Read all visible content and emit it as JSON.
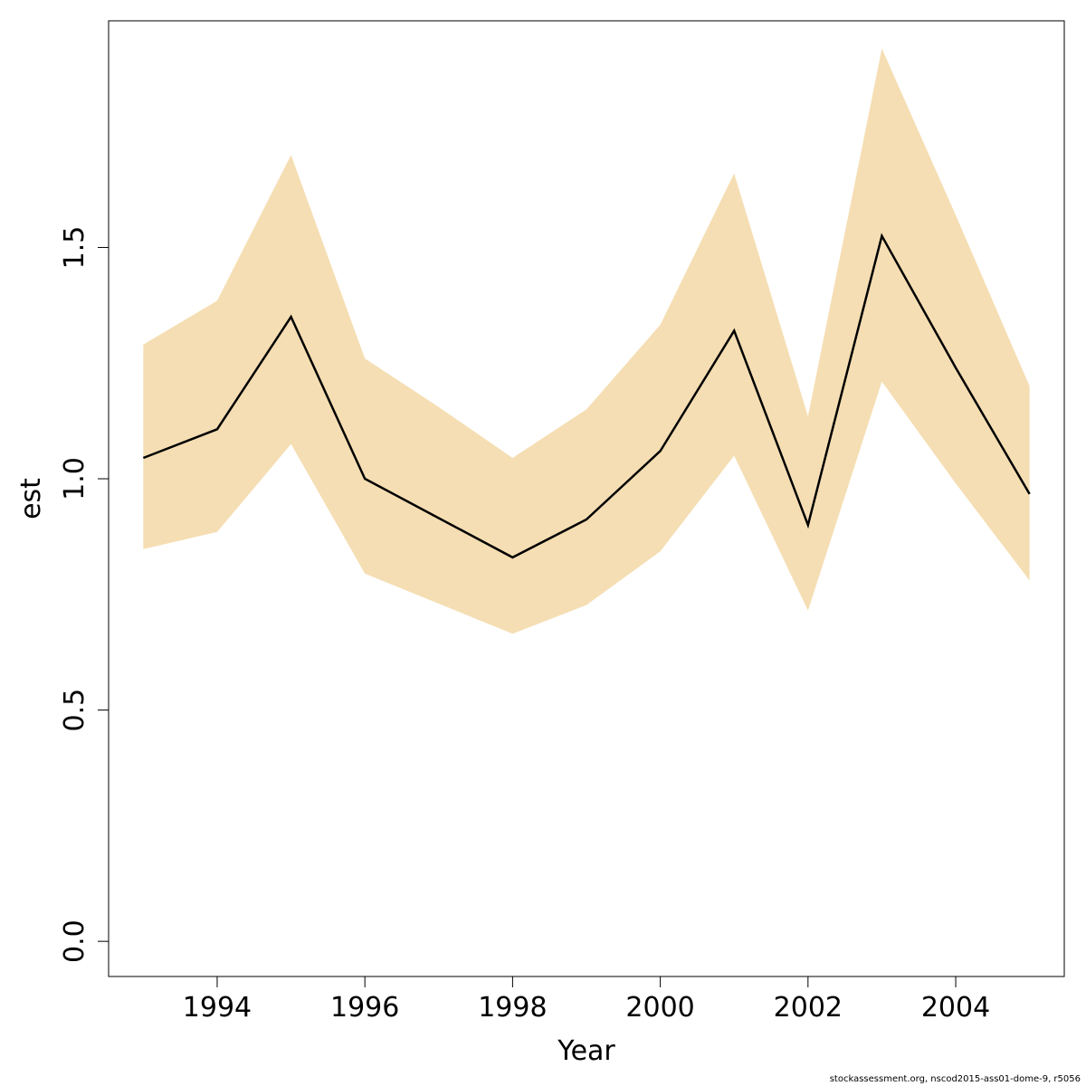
{
  "chart_data": {
    "type": "line",
    "xlabel": "Year",
    "ylabel": "est",
    "x": [
      1993,
      1994,
      1995,
      1996,
      1997,
      1998,
      1999,
      2000,
      2001,
      2002,
      2003,
      2004,
      2005
    ],
    "series": [
      {
        "values": [
          1.045,
          1.107,
          1.35,
          1.0,
          0.915,
          0.83,
          0.912,
          1.06,
          1.32,
          0.9,
          1.525,
          1.24,
          0.967
        ],
        "color": "#000000"
      }
    ],
    "band": {
      "lower": [
        0.848,
        0.885,
        1.075,
        0.795,
        0.73,
        0.665,
        0.727,
        0.843,
        1.05,
        0.715,
        1.21,
        0.99,
        0.78
      ],
      "upper": [
        1.29,
        1.385,
        1.7,
        1.26,
        1.155,
        1.045,
        1.15,
        1.333,
        1.66,
        1.135,
        1.93,
        1.57,
        1.2
      ],
      "color": "#F5DEB3"
    },
    "xticks": [
      "1994",
      "1996",
      "1998",
      "2000",
      "2002",
      "2004"
    ],
    "yticks": [
      "0.0",
      "0.5",
      "1.0",
      "1.5"
    ],
    "xlim": [
      1992.53,
      2005.47
    ],
    "ylim": [
      -0.076,
      1.99
    ],
    "grid": false,
    "legend": "none"
  },
  "footer": "stockassessment.org, nscod2015-ass01-dome-9, r5056"
}
